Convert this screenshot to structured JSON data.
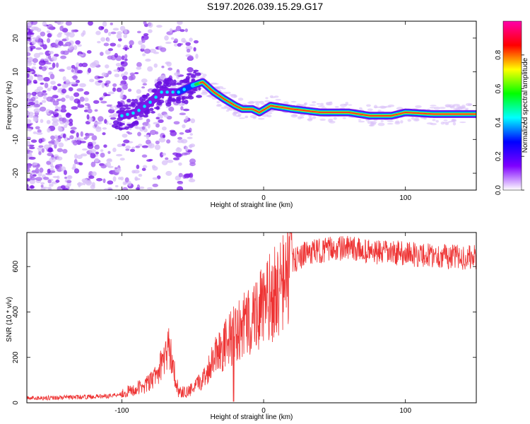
{
  "title": "S197.2026.039.15.29.G17",
  "chart_data": [
    {
      "type": "heatmap",
      "xlabel": "Height of straight line (km)",
      "ylabel": "Frequency (Hz)",
      "xlim": [
        -167,
        150
      ],
      "ylim": [
        -25,
        25
      ],
      "x_ticks": [
        -100,
        0,
        100
      ],
      "y_ticks": [
        -20,
        -10,
        0,
        10,
        20
      ],
      "colorbar": {
        "label": "Normalized spectral amplitude",
        "range": [
          0,
          1
        ],
        "ticks": [
          "0.0",
          "0.2",
          "0.4",
          "0.6",
          "0.8"
        ],
        "tick_values": [
          0.0,
          0.2,
          0.4,
          0.6,
          0.8
        ],
        "colors": [
          "#ffffff",
          "#7f00ff",
          "#0000ff",
          "#00ffff",
          "#00ff00",
          "#ffff00",
          "#ff0000",
          "#ff00aa"
        ]
      },
      "ridge": [
        {
          "x": -100,
          "y": -3
        },
        {
          "x": -90,
          "y": -2
        },
        {
          "x": -80,
          "y": 1
        },
        {
          "x": -72,
          "y": 4
        },
        {
          "x": -60,
          "y": 4
        },
        {
          "x": -50,
          "y": 6
        },
        {
          "x": -43,
          "y": 7
        },
        {
          "x": -35,
          "y": 4
        },
        {
          "x": -28,
          "y": 2
        },
        {
          "x": -20,
          "y": 0
        },
        {
          "x": -15,
          "y": -1
        },
        {
          "x": -8,
          "y": -1
        },
        {
          "x": -3,
          "y": -2
        },
        {
          "x": 5,
          "y": 0
        },
        {
          "x": 20,
          "y": -1
        },
        {
          "x": 40,
          "y": -2
        },
        {
          "x": 60,
          "y": -2
        },
        {
          "x": 75,
          "y": -3
        },
        {
          "x": 90,
          "y": -3
        },
        {
          "x": 100,
          "y": -2
        },
        {
          "x": 120,
          "y": -2.5
        },
        {
          "x": 150,
          "y": -2.5
        }
      ]
    },
    {
      "type": "line",
      "xlabel": "Height of straight line (km)",
      "ylabel": "SNR (10 * v/v)",
      "xlim": [
        -167,
        150
      ],
      "ylim": [
        0,
        750
      ],
      "x_ticks": [
        -100,
        0,
        100
      ],
      "y_ticks": [
        0,
        200,
        400,
        600
      ],
      "color": "#ee3333",
      "series": [
        {
          "name": "SNR",
          "x": [
            -167,
            -130,
            -110,
            -100,
            -90,
            -80,
            -75,
            -70,
            -67,
            -65,
            -62,
            -60,
            -55,
            -50,
            -45,
            -40,
            -37,
            -35,
            -30,
            -25,
            -20,
            -15,
            -10,
            -5,
            0,
            5,
            10,
            15,
            18,
            20,
            25,
            30,
            40,
            50,
            60,
            70,
            80,
            90,
            100,
            110,
            120,
            130,
            140,
            150
          ],
          "y": [
            20,
            25,
            30,
            40,
            60,
            90,
            130,
            200,
            240,
            210,
            100,
            50,
            45,
            60,
            90,
            130,
            180,
            220,
            240,
            270,
            300,
            330,
            360,
            400,
            420,
            460,
            490,
            530,
            600,
            620,
            640,
            660,
            670,
            680,
            680,
            670,
            660,
            660,
            660,
            650,
            650,
            645,
            640,
            640
          ]
        }
      ]
    }
  ]
}
